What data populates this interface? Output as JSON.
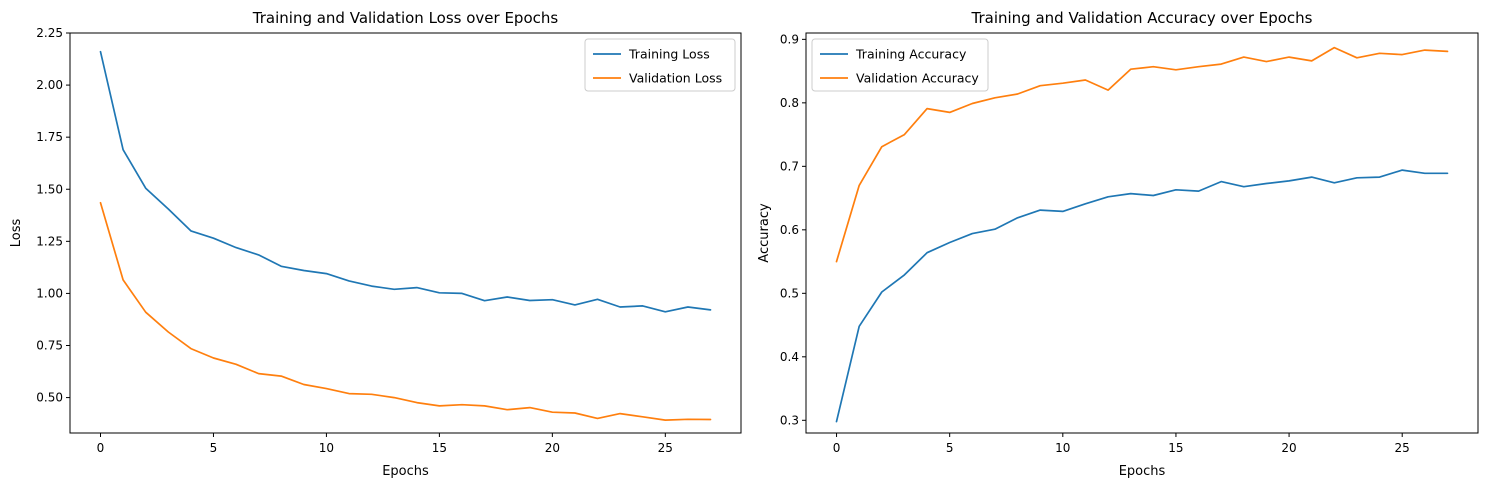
{
  "chart_data": [
    {
      "type": "line",
      "title": "Training and Validation Loss over Epochs",
      "xlabel": "Epochs",
      "ylabel": "Loss",
      "xlim": [
        -1.35,
        28.35
      ],
      "ylim": [
        0.33,
        2.25
      ],
      "xticks": [
        0,
        5,
        10,
        15,
        20,
        25
      ],
      "yticks": [
        0.5,
        0.75,
        1.0,
        1.25,
        1.5,
        1.75,
        2.0,
        2.25
      ],
      "ytick_labels": [
        "0.50",
        "0.75",
        "1.00",
        "1.25",
        "1.50",
        "1.75",
        "2.00",
        "2.25"
      ],
      "grid": false,
      "legend_position": "top-right",
      "x": [
        0,
        1,
        2,
        3,
        4,
        5,
        6,
        7,
        8,
        9,
        10,
        11,
        12,
        13,
        14,
        15,
        16,
        17,
        18,
        19,
        20,
        21,
        22,
        23,
        24,
        25,
        26,
        27
      ],
      "series": [
        {
          "name": "Training Loss",
          "color": "#1f77b4",
          "values": [
            2.16,
            1.69,
            1.505,
            1.405,
            1.3,
            1.265,
            1.22,
            1.185,
            1.13,
            1.11,
            1.095,
            1.06,
            1.035,
            1.02,
            1.028,
            1.003,
            1.0,
            0.965,
            0.983,
            0.966,
            0.97,
            0.945,
            0.972,
            0.935,
            0.94,
            0.912,
            0.935,
            0.921
          ]
        },
        {
          "name": "Validation Loss",
          "color": "#ff7f0e",
          "values": [
            1.435,
            1.065,
            0.91,
            0.815,
            0.735,
            0.69,
            0.66,
            0.615,
            0.603,
            0.563,
            0.543,
            0.519,
            0.516,
            0.5,
            0.476,
            0.46,
            0.466,
            0.46,
            0.442,
            0.452,
            0.43,
            0.426,
            0.4,
            0.423,
            0.408,
            0.392,
            0.396,
            0.395
          ]
        }
      ]
    },
    {
      "type": "line",
      "title": "Training and Validation Accuracy over Epochs",
      "xlabel": "Epochs",
      "ylabel": "Accuracy",
      "xlim": [
        -1.35,
        28.35
      ],
      "ylim": [
        0.28,
        0.91
      ],
      "xticks": [
        0,
        5,
        10,
        15,
        20,
        25
      ],
      "yticks": [
        0.3,
        0.4,
        0.5,
        0.6,
        0.7,
        0.8,
        0.9
      ],
      "ytick_labels": [
        "0.3",
        "0.4",
        "0.5",
        "0.6",
        "0.7",
        "0.8",
        "0.9"
      ],
      "grid": false,
      "legend_position": "top-left",
      "x": [
        0,
        1,
        2,
        3,
        4,
        5,
        6,
        7,
        8,
        9,
        10,
        11,
        12,
        13,
        14,
        15,
        16,
        17,
        18,
        19,
        20,
        21,
        22,
        23,
        24,
        25,
        26,
        27
      ],
      "series": [
        {
          "name": "Training Accuracy",
          "color": "#1f77b4",
          "values": [
            0.298,
            0.448,
            0.502,
            0.529,
            0.564,
            0.58,
            0.594,
            0.601,
            0.619,
            0.631,
            0.629,
            0.641,
            0.652,
            0.657,
            0.654,
            0.663,
            0.661,
            0.676,
            0.668,
            0.673,
            0.677,
            0.683,
            0.674,
            0.682,
            0.683,
            0.694,
            0.689,
            0.689
          ]
        },
        {
          "name": "Validation Accuracy",
          "color": "#ff7f0e",
          "values": [
            0.55,
            0.67,
            0.731,
            0.75,
            0.791,
            0.785,
            0.799,
            0.808,
            0.814,
            0.827,
            0.831,
            0.836,
            0.82,
            0.853,
            0.857,
            0.852,
            0.857,
            0.861,
            0.872,
            0.865,
            0.872,
            0.866,
            0.887,
            0.871,
            0.878,
            0.876,
            0.883,
            0.881
          ]
        }
      ]
    }
  ]
}
